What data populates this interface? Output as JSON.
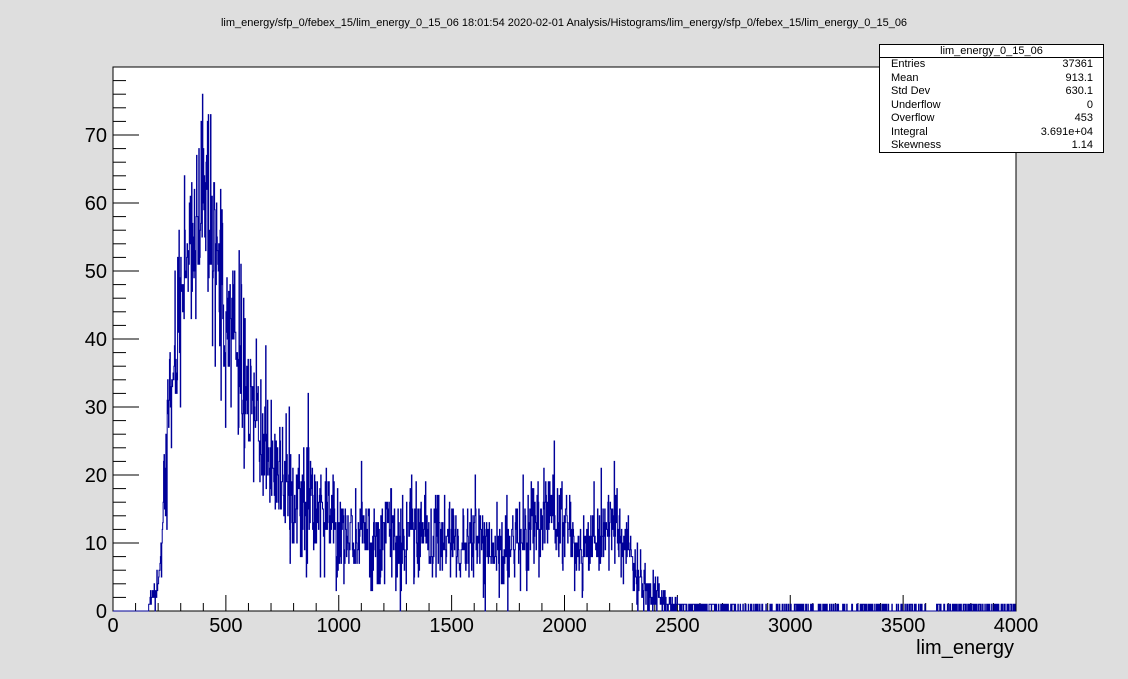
{
  "title": "lim_energy/sfp_0/febex_15/lim_energy_0_15_06  18:01:54  2020-02-01  Analysis/Histograms/lim_energy/sfp_0/febex_15/lim_energy_0_15_06",
  "stats": {
    "name": "lim_energy_0_15_06",
    "rows": [
      {
        "label": "Entries",
        "value": "37361"
      },
      {
        "label": "Mean",
        "value": "913.1"
      },
      {
        "label": "Std Dev",
        "value": "630.1"
      },
      {
        "label": "Underflow",
        "value": "0"
      },
      {
        "label": "Overflow",
        "value": "453"
      },
      {
        "label": "Integral",
        "value": "3.691e+04"
      },
      {
        "label": "Skewness",
        "value": "1.14"
      }
    ]
  },
  "colors": {
    "line": "#000099",
    "background": "#dedede",
    "frame": "#ffffff"
  },
  "chart_data": {
    "type": "histogram",
    "title": "lim_energy/sfp_0/febex_15/lim_energy_0_15_06  18:01:54  2020-02-01  Analysis/Histograms/lim_energy/sfp_0/febex_15/lim_energy_0_15_06",
    "xlabel": "lim_energy",
    "ylabel": "",
    "xlim": [
      0,
      4000
    ],
    "ylim": [
      0,
      80
    ],
    "x_ticks": [
      "0",
      "500",
      "1000",
      "1500",
      "2000",
      "2500",
      "3000",
      "3500",
      "4000"
    ],
    "y_ticks": [
      "0",
      "10",
      "20",
      "30",
      "40",
      "50",
      "60",
      "70"
    ],
    "grid": false,
    "series": [
      {
        "x": [
          150,
          200,
          250,
          300,
          350,
          400,
          450,
          500,
          550,
          600,
          650,
          700,
          750,
          800,
          850,
          900,
          950,
          1000,
          1050,
          1100,
          1150,
          1200,
          1250,
          1300,
          1350,
          1400,
          1450,
          1500,
          1550,
          1600,
          1650,
          1700,
          1750,
          1800,
          1850,
          1900,
          1950,
          2000,
          2050,
          2100,
          2150,
          2200,
          2250,
          2300,
          2350,
          2400,
          2450,
          2500,
          2600,
          2700,
          2800,
          3000,
          3200,
          3500,
          4000
        ],
        "values": [
          0,
          4,
          30,
          47,
          55,
          60,
          52,
          44,
          38,
          33,
          26,
          22,
          18,
          17,
          16,
          15,
          14,
          12,
          11,
          11,
          10,
          11,
          11,
          10,
          11,
          11,
          11,
          10,
          10,
          10,
          9,
          8,
          8,
          11,
          13,
          14,
          15,
          12,
          9,
          8,
          11,
          13,
          11,
          7,
          3,
          2,
          1,
          1,
          0.5,
          0.5,
          0.3,
          0.3,
          0.3,
          0.3,
          0.3
        ],
        "peak_max": 76
      }
    ]
  }
}
